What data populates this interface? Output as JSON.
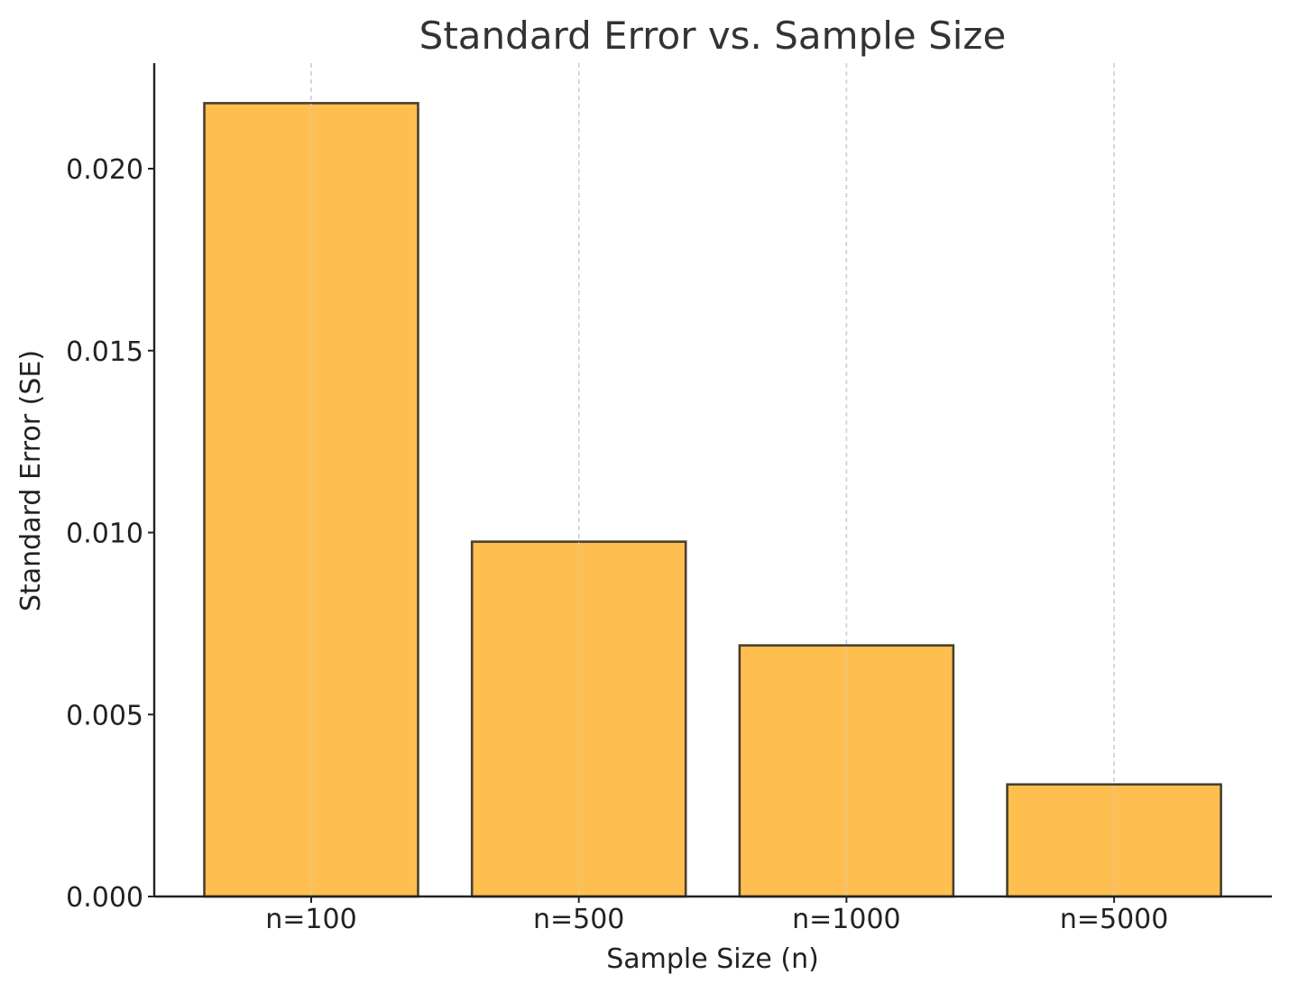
{
  "chart_data": {
    "type": "bar",
    "title": "Standard Error vs. Sample Size",
    "xlabel": "Sample Size (n)",
    "ylabel": "Standard Error (SE)",
    "categories": [
      "n=100",
      "n=500",
      "n=1000",
      "n=5000"
    ],
    "values": [
      0.0218,
      0.00975,
      0.0069,
      0.00308
    ],
    "ylim": [
      0,
      0.0229
    ],
    "yticks": [
      0.0,
      0.005,
      0.01,
      0.015,
      0.02
    ],
    "ytick_labels": [
      "0.000",
      "0.005",
      "0.010",
      "0.015",
      "0.020"
    ],
    "grid": "vertical dashed",
    "legend": "none",
    "colors": {
      "bar_fill": "#FFBF50",
      "bar_edge": "#4A3F2E",
      "grid": "#CCCCCC",
      "axis": "#222222"
    }
  }
}
